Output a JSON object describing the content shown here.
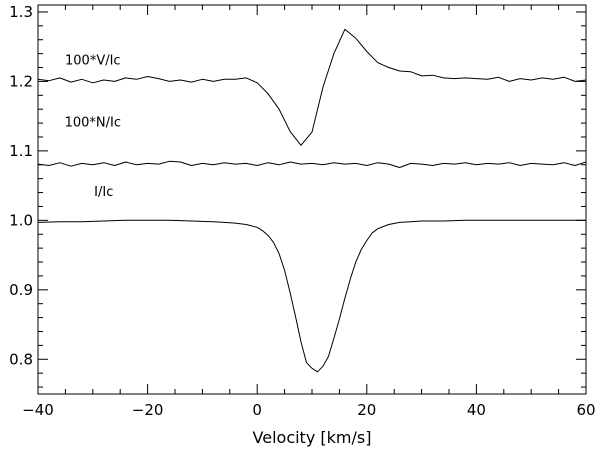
{
  "chart_data": {
    "type": "line",
    "title": "",
    "xlabel": "Velocity [km/s]",
    "ylabel": "",
    "xlim": [
      -40,
      60
    ],
    "ylim": [
      0.75,
      1.31
    ],
    "grid": false,
    "x_ticks": [
      -40,
      -20,
      0,
      20,
      40,
      60
    ],
    "x_tick_labels": [
      "−40",
      "−20",
      "0",
      "20",
      "40",
      "60"
    ],
    "y_ticks": [
      0.8,
      0.9,
      1.0,
      1.1,
      1.2,
      1.3
    ],
    "y_tick_labels": [
      "0.8",
      "0.9",
      "1.0",
      "1.1",
      "1.2",
      "1.3"
    ],
    "series": [
      {
        "name": "100*V/Ic",
        "label_at": [
          -30,
          1.224
        ],
        "x": [
          -40,
          -38,
          -36,
          -34,
          -32,
          -30,
          -28,
          -26,
          -24,
          -22,
          -20,
          -18,
          -16,
          -14,
          -12,
          -10,
          -8,
          -6,
          -4,
          -2,
          0,
          2,
          4,
          6,
          8,
          10,
          12,
          14,
          16,
          18,
          20,
          22,
          24,
          26,
          28,
          30,
          32,
          34,
          36,
          38,
          40,
          42,
          44,
          46,
          48,
          50,
          52,
          54,
          56,
          58,
          60
        ],
        "y": [
          1.203,
          1.201,
          1.205,
          1.199,
          1.203,
          1.198,
          1.202,
          1.2,
          1.205,
          1.203,
          1.207,
          1.204,
          1.2,
          1.202,
          1.199,
          1.203,
          1.2,
          1.203,
          1.203,
          1.205,
          1.198,
          1.182,
          1.16,
          1.128,
          1.108,
          1.127,
          1.192,
          1.24,
          1.275,
          1.262,
          1.243,
          1.227,
          1.22,
          1.215,
          1.214,
          1.208,
          1.209,
          1.205,
          1.204,
          1.205,
          1.204,
          1.203,
          1.206,
          1.2,
          1.204,
          1.202,
          1.205,
          1.203,
          1.206,
          1.2,
          1.202
        ]
      },
      {
        "name": "100*N/Ic",
        "label_at": [
          -30,
          1.135
        ],
        "x": [
          -40,
          -38,
          -36,
          -34,
          -32,
          -30,
          -28,
          -26,
          -24,
          -22,
          -20,
          -18,
          -16,
          -14,
          -12,
          -10,
          -8,
          -6,
          -4,
          -2,
          0,
          2,
          4,
          6,
          8,
          10,
          12,
          14,
          16,
          18,
          20,
          22,
          24,
          26,
          28,
          30,
          32,
          34,
          36,
          38,
          40,
          42,
          44,
          46,
          48,
          50,
          52,
          54,
          56,
          58,
          60
        ],
        "y": [
          1.081,
          1.079,
          1.083,
          1.078,
          1.082,
          1.08,
          1.083,
          1.079,
          1.084,
          1.08,
          1.082,
          1.081,
          1.085,
          1.084,
          1.079,
          1.082,
          1.08,
          1.083,
          1.081,
          1.082,
          1.079,
          1.083,
          1.08,
          1.084,
          1.081,
          1.082,
          1.08,
          1.083,
          1.081,
          1.082,
          1.079,
          1.083,
          1.081,
          1.076,
          1.082,
          1.081,
          1.079,
          1.082,
          1.081,
          1.083,
          1.08,
          1.082,
          1.081,
          1.083,
          1.079,
          1.082,
          1.081,
          1.08,
          1.083,
          1.079,
          1.084
        ]
      },
      {
        "name": "I/Ic",
        "label_at": [
          -28,
          1.035
        ],
        "x": [
          -40,
          -36,
          -32,
          -28,
          -24,
          -20,
          -16,
          -12,
          -8,
          -6,
          -4,
          -2,
          0,
          1,
          2,
          3,
          4,
          5,
          6,
          7,
          8,
          9,
          10,
          11,
          12,
          13,
          14,
          15,
          16,
          17,
          18,
          19,
          20,
          21,
          22,
          24,
          26,
          28,
          30,
          34,
          38,
          42,
          46,
          50,
          54,
          58,
          60
        ],
        "y": [
          0.997,
          0.998,
          0.998,
          0.999,
          1.0,
          1.0,
          1.0,
          0.999,
          0.998,
          0.997,
          0.996,
          0.994,
          0.99,
          0.985,
          0.978,
          0.968,
          0.952,
          0.928,
          0.896,
          0.861,
          0.825,
          0.795,
          0.787,
          0.782,
          0.79,
          0.804,
          0.83,
          0.858,
          0.888,
          0.916,
          0.94,
          0.958,
          0.971,
          0.982,
          0.988,
          0.994,
          0.997,
          0.998,
          0.999,
          0.999,
          1.0,
          1.0,
          1.0,
          1.0,
          1.0,
          1.0,
          1.0
        ]
      }
    ]
  }
}
